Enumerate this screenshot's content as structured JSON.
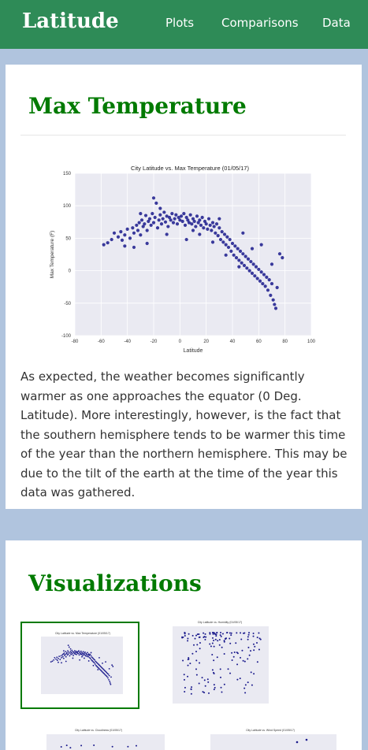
{
  "nav": {
    "brand": "Latitude",
    "links": [
      "Plots",
      "Comparisons",
      "Data"
    ]
  },
  "main_section": {
    "title": "Max Temperature",
    "description": "As expected, the weather becomes significantly warmer as one approaches the equator (0 Deg. Latitude). More interestingly, however, is the fact that the southern hemisphere tends to be warmer this time of the year than the northern hemisphere. This may be due to the tilt of the earth at the time of the year this data was gathered."
  },
  "visualizations": {
    "title": "Visualizations",
    "thumbnails": [
      {
        "title": "City Latitude vs. Max Temperature (01/05/17)"
      },
      {
        "title": "City Latitude vs. Humidity (01/05/17)"
      },
      {
        "title": "City Latitude vs. Cloudiness (01/05/17)"
      },
      {
        "title": "City Latitude vs. Wind Speed (01/05/17)"
      }
    ]
  },
  "colors": {
    "navbar": "#2e8b57",
    "page_bg": "#b0c4de",
    "heading": "#007a00",
    "plot_bg": "#eaeaf2",
    "point": "#1a1a8c"
  },
  "chart_data": {
    "type": "scatter",
    "title": "City Latitude vs. Max Temperature (01/05/17)",
    "xlabel": "Latitude",
    "ylabel": "Max Temperature (F)",
    "xlim": [
      -80,
      100
    ],
    "ylim": [
      -100,
      150
    ],
    "xticks": [
      -80,
      -60,
      -40,
      -20,
      0,
      20,
      40,
      60,
      80,
      100
    ],
    "yticks": [
      -100,
      -50,
      0,
      50,
      100,
      150
    ],
    "grid": true,
    "points": [
      [
        -58,
        40
      ],
      [
        -55,
        43
      ],
      [
        -52,
        48
      ],
      [
        -50,
        58
      ],
      [
        -47,
        52
      ],
      [
        -45,
        60
      ],
      [
        -44,
        47
      ],
      [
        -42,
        55
      ],
      [
        -40,
        64
      ],
      [
        -38,
        50
      ],
      [
        -36,
        66
      ],
      [
        -35,
        58
      ],
      [
        -33,
        70
      ],
      [
        -32,
        62
      ],
      [
        -31,
        74
      ],
      [
        -30,
        55
      ],
      [
        -29,
        78
      ],
      [
        -28,
        68
      ],
      [
        -27,
        72
      ],
      [
        -26,
        85
      ],
      [
        -25,
        62
      ],
      [
        -24,
        76
      ],
      [
        -23,
        80
      ],
      [
        -22,
        70
      ],
      [
        -21,
        88
      ],
      [
        -20,
        74
      ],
      [
        -19,
        82
      ],
      [
        -18,
        104
      ],
      [
        -17,
        66
      ],
      [
        -16,
        78
      ],
      [
        -15,
        86
      ],
      [
        -14,
        72
      ],
      [
        -13,
        80
      ],
      [
        -12,
        90
      ],
      [
        -11,
        75
      ],
      [
        -10,
        84
      ],
      [
        -9,
        68
      ],
      [
        -8,
        82
      ],
      [
        -7,
        78
      ],
      [
        -6,
        88
      ],
      [
        -5,
        74
      ],
      [
        -4,
        80
      ],
      [
        -3,
        86
      ],
      [
        -2,
        72
      ],
      [
        -1,
        82
      ],
      [
        0,
        78
      ],
      [
        1,
        84
      ],
      [
        2,
        76
      ],
      [
        3,
        88
      ],
      [
        4,
        70
      ],
      [
        5,
        82
      ],
      [
        6,
        78
      ],
      [
        7,
        74
      ],
      [
        8,
        86
      ],
      [
        9,
        72
      ],
      [
        10,
        80
      ],
      [
        11,
        76
      ],
      [
        12,
        68
      ],
      [
        13,
        84
      ],
      [
        14,
        74
      ],
      [
        15,
        78
      ],
      [
        16,
        70
      ],
      [
        17,
        82
      ],
      [
        18,
        66
      ],
      [
        19,
        76
      ],
      [
        20,
        72
      ],
      [
        21,
        64
      ],
      [
        22,
        80
      ],
      [
        23,
        70
      ],
      [
        24,
        62
      ],
      [
        25,
        74
      ],
      [
        26,
        68
      ],
      [
        27,
        58
      ],
      [
        28,
        72
      ],
      [
        29,
        54
      ],
      [
        30,
        66
      ],
      [
        31,
        48
      ],
      [
        32,
        60
      ],
      [
        33,
        44
      ],
      [
        34,
        56
      ],
      [
        35,
        40
      ],
      [
        36,
        52
      ],
      [
        37,
        36
      ],
      [
        38,
        48
      ],
      [
        39,
        30
      ],
      [
        40,
        42
      ],
      [
        41,
        24
      ],
      [
        42,
        38
      ],
      [
        43,
        20
      ],
      [
        44,
        34
      ],
      [
        45,
        16
      ],
      [
        46,
        30
      ],
      [
        47,
        12
      ],
      [
        48,
        26
      ],
      [
        49,
        8
      ],
      [
        50,
        22
      ],
      [
        51,
        4
      ],
      [
        52,
        18
      ],
      [
        53,
        0
      ],
      [
        54,
        14
      ],
      [
        55,
        -4
      ],
      [
        56,
        10
      ],
      [
        57,
        -8
      ],
      [
        58,
        6
      ],
      [
        59,
        -12
      ],
      [
        60,
        2
      ],
      [
        61,
        -16
      ],
      [
        62,
        -2
      ],
      [
        63,
        -20
      ],
      [
        64,
        -6
      ],
      [
        65,
        -24
      ],
      [
        66,
        -10
      ],
      [
        67,
        -30
      ],
      [
        68,
        -14
      ],
      [
        69,
        -38
      ],
      [
        70,
        -20
      ],
      [
        71,
        -45
      ],
      [
        72,
        -52
      ],
      [
        73,
        -58
      ],
      [
        74,
        -26
      ],
      [
        -20,
        112
      ],
      [
        -15,
        96
      ],
      [
        -35,
        36
      ],
      [
        -25,
        42
      ],
      [
        -10,
        56
      ],
      [
        5,
        48
      ],
      [
        15,
        56
      ],
      [
        25,
        44
      ],
      [
        35,
        24
      ],
      [
        45,
        6
      ],
      [
        55,
        34
      ],
      [
        62,
        40
      ],
      [
        70,
        10
      ],
      [
        76,
        26
      ],
      [
        78,
        20
      ],
      [
        -42,
        38
      ],
      [
        -30,
        88
      ],
      [
        10,
        62
      ],
      [
        30,
        80
      ],
      [
        48,
        58
      ]
    ]
  }
}
